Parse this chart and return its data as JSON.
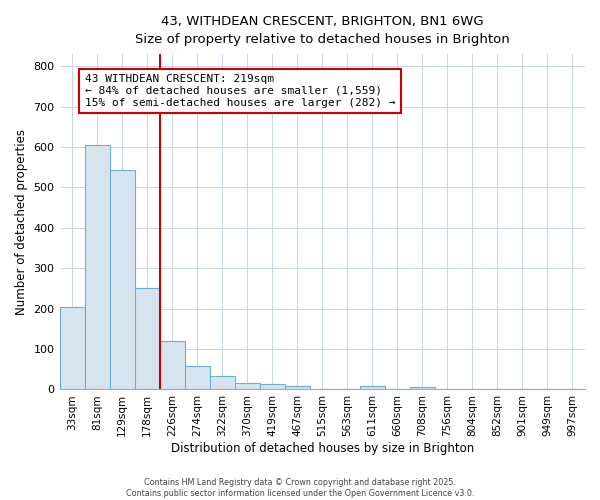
{
  "title_line1": "43, WITHDEAN CRESCENT, BRIGHTON, BN1 6WG",
  "title_line2": "Size of property relative to detached houses in Brighton",
  "xlabel": "Distribution of detached houses by size in Brighton",
  "ylabel": "Number of detached properties",
  "bar_labels": [
    "33sqm",
    "81sqm",
    "129sqm",
    "178sqm",
    "226sqm",
    "274sqm",
    "322sqm",
    "370sqm",
    "419sqm",
    "467sqm",
    "515sqm",
    "563sqm",
    "611sqm",
    "660sqm",
    "708sqm",
    "756sqm",
    "804sqm",
    "852sqm",
    "901sqm",
    "949sqm",
    "997sqm"
  ],
  "bar_values": [
    203,
    604,
    544,
    252,
    120,
    57,
    33,
    17,
    13,
    8,
    0,
    0,
    8,
    0,
    7,
    0,
    0,
    0,
    0,
    0,
    0
  ],
  "bar_color": "#d6e4f0",
  "bar_edge_color": "#6aaed6",
  "red_line_index": 4,
  "red_line_label": "43 WITHDEAN CRESCENT: 219sqm",
  "annotation_line2": "← 84% of detached houses are smaller (1,559)",
  "annotation_line3": "15% of semi-detached houses are larger (282) →",
  "annotation_box_facecolor": "#ffffff",
  "annotation_box_edgecolor": "#cc0000",
  "vline_color": "#cc0000",
  "ylim": [
    0,
    830
  ],
  "yticks": [
    0,
    100,
    200,
    300,
    400,
    500,
    600,
    700,
    800
  ],
  "grid_color": "#c8d4e8",
  "fig_background": "#ffffff",
  "ax_background": "#ffffff",
  "footer_line1": "Contains HM Land Registry data © Crown copyright and database right 2025.",
  "footer_line2": "Contains public sector information licensed under the Open Government Licence v3.0."
}
